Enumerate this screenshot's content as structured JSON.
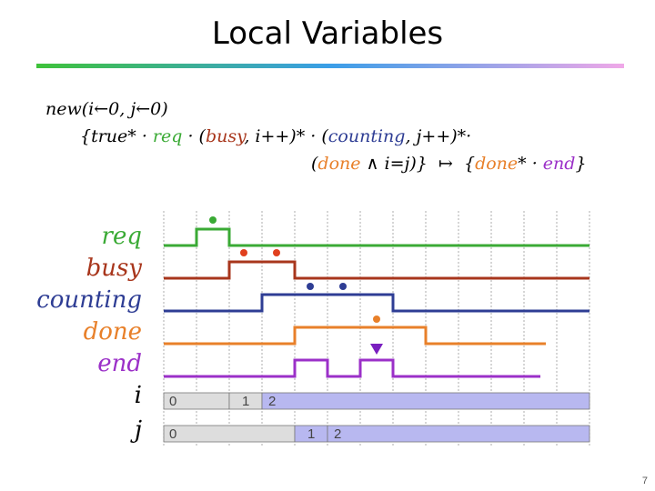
{
  "title": "Local Variables",
  "formula": {
    "lines": [
      [
        {
          "text": "new(i←0, j←0)"
        }
      ],
      [
        {
          "text": "{true* · "
        },
        {
          "text": "req",
          "color": "#3aaa35"
        },
        {
          "text": " · ("
        },
        {
          "text": "busy",
          "color": "#a8361c"
        },
        {
          "text": ", i++)* · ("
        },
        {
          "text": "counting",
          "color": "#2e3d94"
        },
        {
          "text": ", j++)*·"
        }
      ],
      [
        {
          "text": "("
        },
        {
          "text": "done",
          "color": "#e8802a"
        },
        {
          "text": " ∧ i=j)}  ↦  {"
        },
        {
          "text": "done",
          "color": "#e8802a"
        },
        {
          "text": "* · "
        },
        {
          "text": "end",
          "color": "#9b30c8"
        },
        {
          "text": "}"
        }
      ]
    ]
  },
  "signals": [
    {
      "label": "req",
      "color": "#3aaa35"
    },
    {
      "label": "busy",
      "color": "#a8361c"
    },
    {
      "label": "counting",
      "color": "#2e3d94"
    },
    {
      "label": "done",
      "color": "#e8802a"
    },
    {
      "label": "end",
      "color": "#9b30c8"
    }
  ],
  "counters": [
    {
      "label": "i",
      "values": [
        0,
        1,
        2
      ]
    },
    {
      "label": "j",
      "values": [
        0,
        1,
        2
      ]
    }
  ],
  "page_number": 7
}
